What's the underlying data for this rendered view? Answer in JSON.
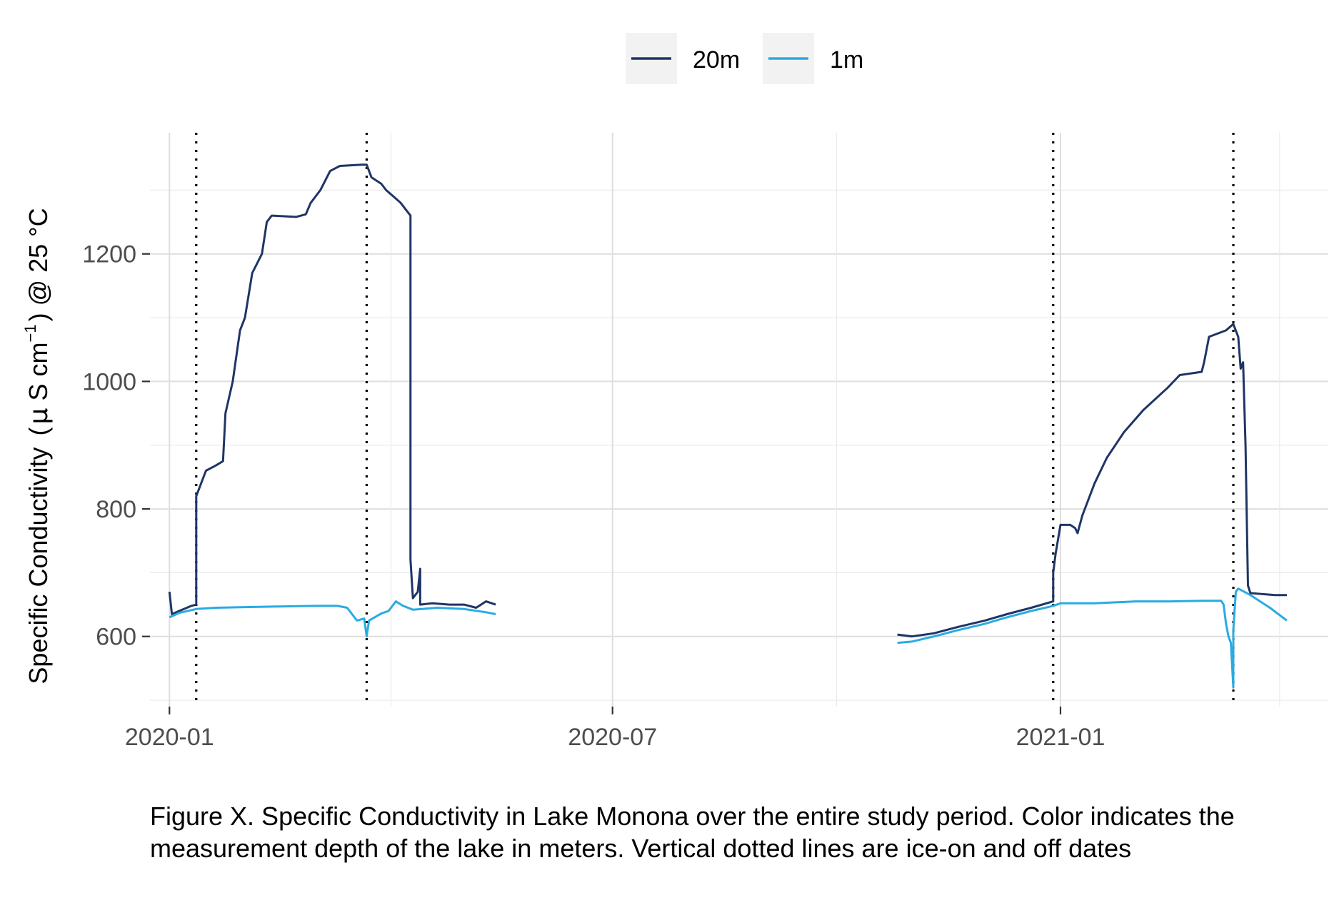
{
  "caption": "Figure X. Specific Conductivity in Lake Monona over the entire study period. Color indicates the measurement depth of the lake in meters. Vertical dotted lines are ice-on and off dates",
  "chart_data": {
    "type": "line",
    "ylabel": "Specific Conductivity (μS cm⁻¹) @ 25 °C",
    "ylabel_parts": {
      "main": "Specific Conductivity ",
      "open": "(",
      "mu": "μ",
      "s": " S cm",
      "exp": "−1",
      "close": ")",
      "tail": " @ 25 °C"
    },
    "xlabel": "",
    "x_ticks": [
      "2020-01",
      "2020-07",
      "2021-01"
    ],
    "y_ticks": [
      600,
      800,
      1000,
      1200
    ],
    "xlim": [
      "2019-12-24",
      "2021-04-21"
    ],
    "ylim": [
      490,
      1390
    ],
    "grid": true,
    "legend_position": "top",
    "vlines": [
      "2020-01-12",
      "2020-03-22",
      "2020-12-29",
      "2021-03-13"
    ],
    "series": [
      {
        "name": "20m",
        "color": "#1f3566",
        "points": [
          [
            "2020-01-01",
            670
          ],
          [
            "2020-01-02",
            635
          ],
          [
            "2020-01-05",
            640
          ],
          [
            "2020-01-10",
            648
          ],
          [
            "2020-01-12",
            650
          ],
          [
            "2020-01-12",
            820
          ],
          [
            "2020-01-14",
            840
          ],
          [
            "2020-01-16",
            860
          ],
          [
            "2020-01-20",
            868
          ],
          [
            "2020-01-23",
            875
          ],
          [
            "2020-01-24",
            950
          ],
          [
            "2020-01-27",
            1000
          ],
          [
            "2020-01-30",
            1080
          ],
          [
            "2020-02-01",
            1100
          ],
          [
            "2020-02-04",
            1170
          ],
          [
            "2020-02-08",
            1200
          ],
          [
            "2020-02-10",
            1250
          ],
          [
            "2020-02-12",
            1260
          ],
          [
            "2020-02-22",
            1258
          ],
          [
            "2020-02-26",
            1262
          ],
          [
            "2020-02-28",
            1280
          ],
          [
            "2020-03-03",
            1300
          ],
          [
            "2020-03-07",
            1330
          ],
          [
            "2020-03-11",
            1338
          ],
          [
            "2020-03-20",
            1340
          ],
          [
            "2020-03-22",
            1340
          ],
          [
            "2020-03-24",
            1320
          ],
          [
            "2020-03-28",
            1310
          ],
          [
            "2020-03-30",
            1300
          ],
          [
            "2020-04-02",
            1290
          ],
          [
            "2020-04-05",
            1280
          ],
          [
            "2020-04-08",
            1265
          ],
          [
            "2020-04-09",
            1260
          ],
          [
            "2020-04-09",
            720
          ],
          [
            "2020-04-10",
            660
          ],
          [
            "2020-04-12",
            670
          ],
          [
            "2020-04-13",
            706
          ],
          [
            "2020-04-13",
            650
          ],
          [
            "2020-04-18",
            652
          ],
          [
            "2020-04-25",
            650
          ],
          [
            "2020-05-01",
            650
          ],
          [
            "2020-05-06",
            645
          ],
          [
            "2020-05-10",
            655
          ],
          [
            "2020-05-14",
            650
          ],
          null,
          [
            "2020-10-26",
            603
          ],
          [
            "2020-11-01",
            600
          ],
          [
            "2020-11-10",
            605
          ],
          [
            "2020-11-20",
            615
          ],
          [
            "2020-12-01",
            625
          ],
          [
            "2020-12-10",
            635
          ],
          [
            "2020-12-20",
            645
          ],
          [
            "2020-12-29",
            655
          ],
          [
            "2020-12-29",
            700
          ],
          [
            "2020-12-30",
            730
          ],
          [
            "2021-01-01",
            775
          ],
          [
            "2021-01-05",
            775
          ],
          [
            "2021-01-07",
            770
          ],
          [
            "2021-01-08",
            762
          ],
          [
            "2021-01-10",
            790
          ],
          [
            "2021-01-15",
            840
          ],
          [
            "2021-01-20",
            880
          ],
          [
            "2021-01-27",
            920
          ],
          [
            "2021-02-04",
            955
          ],
          [
            "2021-02-14",
            990
          ],
          [
            "2021-02-19",
            1010
          ],
          [
            "2021-02-28",
            1015
          ],
          [
            "2021-03-01",
            1030
          ],
          [
            "2021-03-03",
            1070
          ],
          [
            "2021-03-10",
            1080
          ],
          [
            "2021-03-13",
            1090
          ],
          [
            "2021-03-15",
            1070
          ],
          [
            "2021-03-16",
            1020
          ],
          [
            "2021-03-17",
            1030
          ],
          [
            "2021-03-18",
            900
          ],
          [
            "2021-03-19",
            680
          ],
          [
            "2021-03-20",
            668
          ],
          [
            "2021-03-30",
            665
          ],
          [
            "2021-04-04",
            665
          ]
        ]
      },
      {
        "name": "1m",
        "color": "#29abe2",
        "points": [
          [
            "2020-01-01",
            630
          ],
          [
            "2020-01-05",
            637
          ],
          [
            "2020-01-12",
            643
          ],
          [
            "2020-01-20",
            645
          ],
          [
            "2020-02-01",
            646
          ],
          [
            "2020-02-15",
            647
          ],
          [
            "2020-03-01",
            648
          ],
          [
            "2020-03-10",
            648
          ],
          [
            "2020-03-14",
            645
          ],
          [
            "2020-03-18",
            625
          ],
          [
            "2020-03-21",
            628
          ],
          [
            "2020-03-22",
            600
          ],
          [
            "2020-03-23",
            625
          ],
          [
            "2020-03-28",
            636
          ],
          [
            "2020-03-31",
            640
          ],
          [
            "2020-04-03",
            655
          ],
          [
            "2020-04-06",
            648
          ],
          [
            "2020-04-10",
            642
          ],
          [
            "2020-04-20",
            645
          ],
          [
            "2020-05-01",
            643
          ],
          [
            "2020-05-10",
            638
          ],
          [
            "2020-05-14",
            635
          ],
          null,
          [
            "2020-10-26",
            590
          ],
          [
            "2020-11-01",
            592
          ],
          [
            "2020-11-10",
            600
          ],
          [
            "2020-11-20",
            610
          ],
          [
            "2020-12-01",
            620
          ],
          [
            "2020-12-10",
            630
          ],
          [
            "2020-12-20",
            640
          ],
          [
            "2020-12-29",
            648
          ],
          [
            "2021-01-01",
            652
          ],
          [
            "2021-01-15",
            652
          ],
          [
            "2021-02-01",
            655
          ],
          [
            "2021-02-15",
            655
          ],
          [
            "2021-03-01",
            656
          ],
          [
            "2021-03-08",
            656
          ],
          [
            "2021-03-09",
            650
          ],
          [
            "2021-03-10",
            620
          ],
          [
            "2021-03-11",
            600
          ],
          [
            "2021-03-12",
            590
          ],
          [
            "2021-03-13",
            520
          ],
          [
            "2021-03-13",
            610
          ],
          [
            "2021-03-14",
            670
          ],
          [
            "2021-03-15",
            675
          ],
          [
            "2021-03-20",
            665
          ],
          [
            "2021-03-28",
            645
          ],
          [
            "2021-04-04",
            625
          ]
        ]
      }
    ]
  }
}
